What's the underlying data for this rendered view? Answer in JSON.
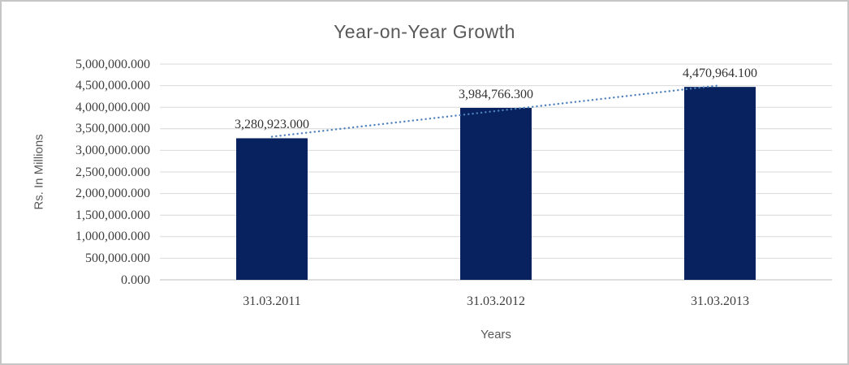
{
  "window": {
    "background": "#ffffff",
    "border_color": "#c6c6c6"
  },
  "chart_data": {
    "type": "bar",
    "title": "Year-on-Year Growth",
    "xlabel": "Years",
    "ylabel": "Rs. In Millions",
    "categories": [
      "31.03.2011",
      "31.03.2012",
      "31.03.2013"
    ],
    "values": [
      3280923.0,
      3984766.3,
      4470964.1
    ],
    "data_labels": [
      "3,280,923.000",
      "3,984,766.300",
      "4,470,964.100"
    ],
    "ylim": [
      0,
      5000000
    ],
    "ytick_step": 500000,
    "ytick_labels": [
      "0.000",
      "500,000.000",
      "1,000,000.000",
      "1,500,000.000",
      "2,000,000.000",
      "2,500,000.000",
      "3,000,000.000",
      "3,500,000.000",
      "4,000,000.000",
      "4,500,000.000",
      "5,000,000.000"
    ],
    "grid": true,
    "legend": "none",
    "trendline": {
      "style": "dotted",
      "color": "#4e81bd"
    },
    "colors": {
      "bar": "#07225f",
      "gridline": "#d9d9d9",
      "axis_line": "#c9c9c9",
      "title_text": "#595959",
      "tick_text": "#3f3f3f",
      "data_label_text": "#333333"
    }
  }
}
